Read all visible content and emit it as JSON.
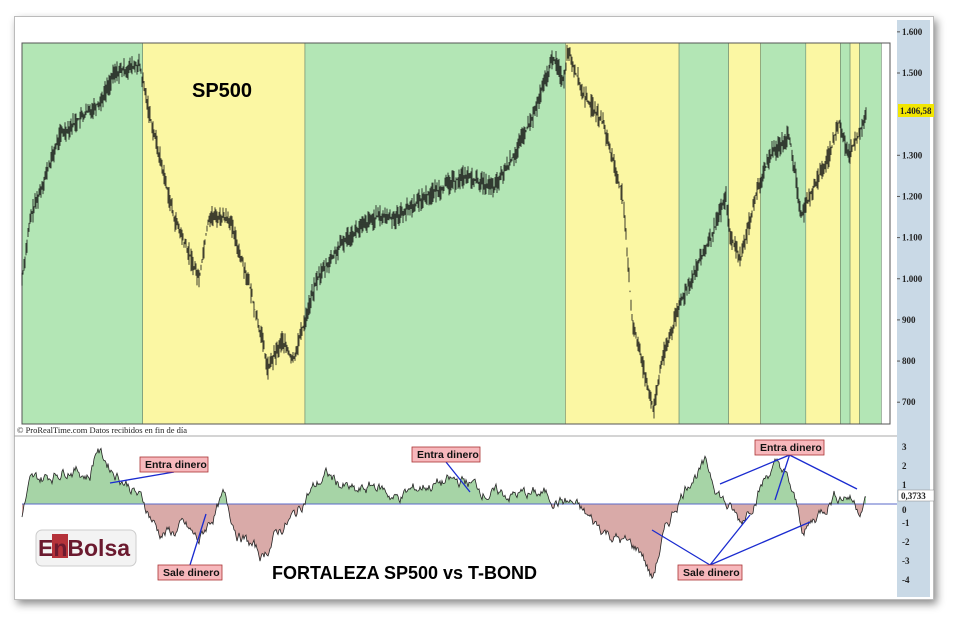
{
  "chart_data": [
    {
      "type": "line",
      "title": "SP500",
      "source_note": "© ProRealTime.com  Datos recibidos en fin de día",
      "y_ticks": [
        "1.600",
        "1.500",
        "1.300",
        "1.200",
        "1.100",
        "1.000",
        "900",
        "800",
        "700"
      ],
      "y_tick_values": [
        1600,
        1500,
        1300,
        1200,
        1100,
        1000,
        900,
        800,
        700
      ],
      "ylim": [
        650,
        1600
      ],
      "last_value_label": "1.406,58",
      "last_value": 1406.58,
      "last_value_color": "#f2e600",
      "regions": [
        {
          "type": "green",
          "from": 0.0,
          "to": 0.139
        },
        {
          "type": "yellow",
          "from": 0.139,
          "to": 0.326
        },
        {
          "type": "green",
          "from": 0.326,
          "to": 0.626
        },
        {
          "type": "yellow",
          "from": 0.626,
          "to": 0.757
        },
        {
          "type": "green",
          "from": 0.757,
          "to": 0.814
        },
        {
          "type": "yellow",
          "from": 0.814,
          "to": 0.851
        },
        {
          "type": "green",
          "from": 0.851,
          "to": 0.903
        },
        {
          "type": "yellow",
          "from": 0.903,
          "to": 0.943
        },
        {
          "type": "green",
          "from": 0.943,
          "to": 0.954
        },
        {
          "type": "yellow",
          "from": 0.954,
          "to": 0.965
        },
        {
          "type": "green",
          "from": 0.965,
          "to": 0.99
        }
      ],
      "region_colors": {
        "green": "#b3e6b5",
        "yellow": "#fbf7a3"
      },
      "series_points": [
        [
          0,
          1000
        ],
        [
          0.01,
          1150
        ],
        [
          0.044,
          1350
        ],
        [
          0.09,
          1430
        ],
        [
          0.107,
          1500
        ],
        [
          0.135,
          1520
        ],
        [
          0.147,
          1400
        ],
        [
          0.175,
          1150
        ],
        [
          0.204,
          1000
        ],
        [
          0.215,
          1150
        ],
        [
          0.238,
          1150
        ],
        [
          0.26,
          1000
        ],
        [
          0.277,
          850
        ],
        [
          0.283,
          780
        ],
        [
          0.3,
          850
        ],
        [
          0.312,
          800
        ],
        [
          0.326,
          900
        ],
        [
          0.34,
          1000
        ],
        [
          0.374,
          1100
        ],
        [
          0.408,
          1150
        ],
        [
          0.431,
          1150
        ],
        [
          0.465,
          1200
        ],
        [
          0.51,
          1250
        ],
        [
          0.544,
          1220
        ],
        [
          0.567,
          1300
        ],
        [
          0.59,
          1400
        ],
        [
          0.612,
          1540
        ],
        [
          0.624,
          1480
        ],
        [
          0.629,
          1560
        ],
        [
          0.646,
          1450
        ],
        [
          0.669,
          1380
        ],
        [
          0.692,
          1200
        ],
        [
          0.703,
          900
        ],
        [
          0.714,
          800
        ],
        [
          0.728,
          680
        ],
        [
          0.737,
          800
        ],
        [
          0.76,
          950
        ],
        [
          0.794,
          1100
        ],
        [
          0.811,
          1200
        ],
        [
          0.816,
          1100
        ],
        [
          0.828,
          1050
        ],
        [
          0.845,
          1200
        ],
        [
          0.862,
          1300
        ],
        [
          0.884,
          1350
        ],
        [
          0.898,
          1150
        ],
        [
          0.907,
          1200
        ],
        [
          0.93,
          1300
        ],
        [
          0.941,
          1380
        ],
        [
          0.952,
          1300
        ],
        [
          0.964,
          1350
        ],
        [
          0.973,
          1406.58
        ]
      ]
    },
    {
      "type": "area",
      "title": "FORTALEZA SP500 vs T-BOND",
      "y_ticks": [
        "3",
        "2",
        "1",
        "0",
        "-1",
        "-2",
        "-3",
        "-4"
      ],
      "y_tick_values": [
        3,
        2,
        1,
        0,
        -1,
        -2,
        -3,
        -4
      ],
      "ylim": [
        -4.3,
        3.2
      ],
      "last_value_label": "0,3733",
      "last_value": 0.3733,
      "positive_color": "#a6d4a6",
      "negative_color": "#d9aaa8",
      "series_points": [
        [
          0,
          -0.5
        ],
        [
          0.009,
          1
        ],
        [
          0.032,
          1.5
        ],
        [
          0.055,
          2
        ],
        [
          0.078,
          1.5
        ],
        [
          0.086,
          3
        ],
        [
          0.101,
          2
        ],
        [
          0.124,
          1
        ],
        [
          0.141,
          0
        ],
        [
          0.158,
          -1.5
        ],
        [
          0.175,
          -1.5
        ],
        [
          0.186,
          -1.2
        ],
        [
          0.204,
          -2
        ],
        [
          0.215,
          -1
        ],
        [
          0.232,
          0.3
        ],
        [
          0.249,
          -1.5
        ],
        [
          0.277,
          -2.8
        ],
        [
          0.294,
          -1.5
        ],
        [
          0.317,
          -0.5
        ],
        [
          0.328,
          0.5
        ],
        [
          0.351,
          1.5
        ],
        [
          0.385,
          0.5
        ],
        [
          0.408,
          1
        ],
        [
          0.431,
          0.3
        ],
        [
          0.465,
          1
        ],
        [
          0.51,
          1.2
        ],
        [
          0.544,
          0.5
        ],
        [
          0.601,
          0.5
        ],
        [
          0.635,
          0
        ],
        [
          0.658,
          -1
        ],
        [
          0.692,
          -2
        ],
        [
          0.714,
          -2.5
        ],
        [
          0.726,
          -4
        ],
        [
          0.737,
          -2
        ],
        [
          0.754,
          0
        ],
        [
          0.771,
          1.5
        ],
        [
          0.788,
          2
        ],
        [
          0.811,
          0
        ],
        [
          0.828,
          -1
        ],
        [
          0.845,
          0.5
        ],
        [
          0.862,
          1.8
        ],
        [
          0.873,
          2
        ],
        [
          0.884,
          1
        ],
        [
          0.901,
          -1.5
        ],
        [
          0.918,
          -0.5
        ],
        [
          0.935,
          0.5
        ],
        [
          0.952,
          0.5
        ],
        [
          0.964,
          -0.2
        ],
        [
          0.973,
          0.3733
        ]
      ],
      "annotations": [
        {
          "label": "Entra dinero",
          "kind": "in"
        },
        {
          "label": "Entra dinero",
          "kind": "in"
        },
        {
          "label": "Entra dinero",
          "kind": "in"
        },
        {
          "label": "Sale dinero",
          "kind": "out"
        },
        {
          "label": "Sale dinero",
          "kind": "out"
        }
      ]
    }
  ],
  "logo": {
    "text": "EnBolsa"
  }
}
